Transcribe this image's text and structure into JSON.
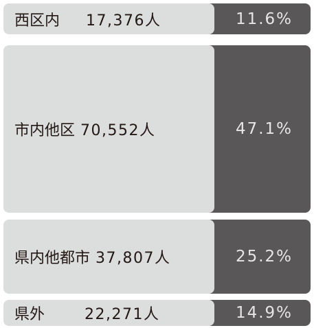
{
  "rows": [
    {
      "label": "西区内",
      "count": "17,376人",
      "share": "11.6%"
    },
    {
      "label": "市内他区",
      "count": "70,552人",
      "share": "47.1%"
    },
    {
      "label": "県内他都市",
      "count": "37,807人",
      "share": "25.2%"
    },
    {
      "label": "県外",
      "count": "22,271人",
      "share": "14.9%"
    }
  ]
}
